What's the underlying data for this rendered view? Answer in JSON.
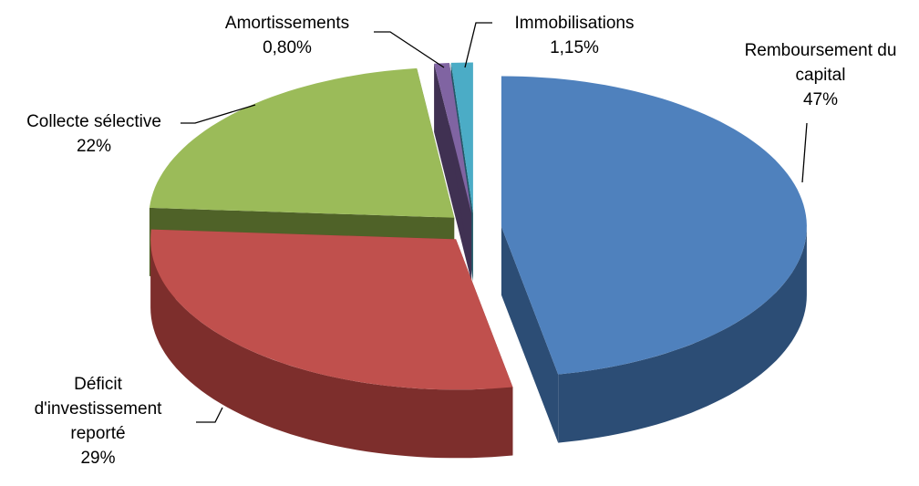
{
  "chart_data": {
    "type": "pie3d",
    "categories": [
      "Remboursement du capital",
      "Déficit d'investissement reporté",
      "Collecte sélective",
      "Amortissements",
      "Immobilisations"
    ],
    "values": [
      47,
      29,
      22,
      0.8,
      1.15
    ],
    "value_labels": [
      "47%",
      "29%",
      "22%",
      "0,80%",
      "1,15%"
    ],
    "colors": [
      "#4f81bd",
      "#c0504d",
      "#9bbb59",
      "#8064a2",
      "#4bacc6"
    ],
    "side_colors": [
      "#2c4d75",
      "#7d2e2c",
      "#4f6228",
      "#403152",
      "#215968"
    ]
  }
}
